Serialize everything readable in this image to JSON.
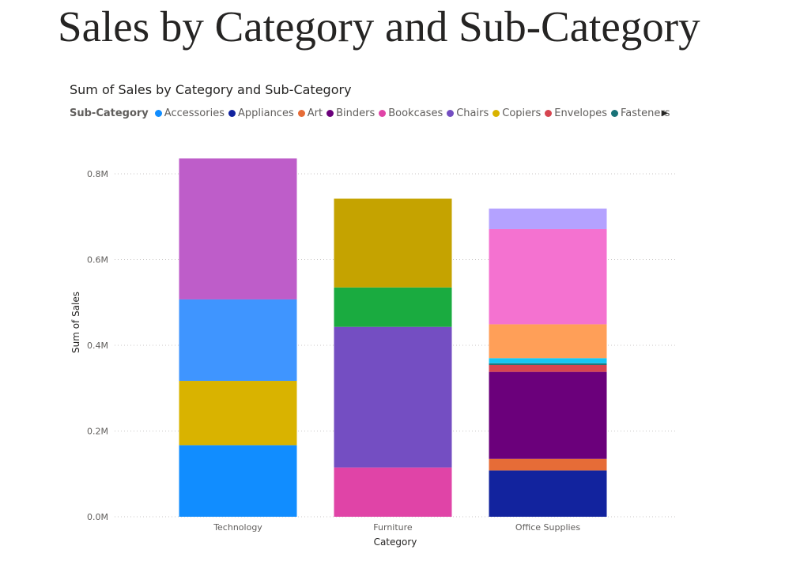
{
  "page": {
    "title": "Sales by Category and Sub-Category"
  },
  "chart_data": {
    "type": "bar",
    "stacked": true,
    "title": "Sum of Sales by Category and Sub-Category",
    "xlabel": "Category",
    "ylabel": "Sum of Sales",
    "ylim": [
      0,
      800000
    ],
    "yticks": [
      {
        "value": 0,
        "label": "0.0M"
      },
      {
        "value": 200000,
        "label": "0.2M"
      },
      {
        "value": 400000,
        "label": "0.4M"
      },
      {
        "value": 600000,
        "label": "0.6M"
      },
      {
        "value": 800000,
        "label": "0.8M"
      }
    ],
    "grid": true,
    "legend_placement": "top",
    "legend_title": "Sub-Category",
    "legend": [
      {
        "name": "Accessories",
        "color": "#118DFF"
      },
      {
        "name": "Appliances",
        "color": "#12239E"
      },
      {
        "name": "Art",
        "color": "#E66C37"
      },
      {
        "name": "Binders",
        "color": "#6B007B"
      },
      {
        "name": "Bookcases",
        "color": "#E044A7"
      },
      {
        "name": "Chairs",
        "color": "#744EC2"
      },
      {
        "name": "Copiers",
        "color": "#D9B300"
      },
      {
        "name": "Envelopes",
        "color": "#D64550"
      },
      {
        "name": "Fasteners",
        "color": "#197278"
      }
    ],
    "categories": [
      "Technology",
      "Furniture",
      "Office Supplies"
    ],
    "stacks": [
      {
        "category": "Technology",
        "segments": [
          {
            "value": 167000,
            "color": "#118DFF"
          },
          {
            "value": 150000,
            "color": "#D9B300"
          },
          {
            "value": 190000,
            "color": "#3F95FF"
          },
          {
            "value": 329000,
            "color": "#BE5DC9"
          }
        ]
      },
      {
        "category": "Furniture",
        "segments": [
          {
            "value": 115000,
            "color": "#E044A7"
          },
          {
            "value": 328000,
            "color": "#744EC2"
          },
          {
            "value": 92000,
            "color": "#1AAB40"
          },
          {
            "value": 207000,
            "color": "#C5A300"
          }
        ]
      },
      {
        "category": "Office Supplies",
        "segments": [
          {
            "value": 108000,
            "color": "#12239E"
          },
          {
            "value": 27000,
            "color": "#E66C37"
          },
          {
            "value": 203000,
            "color": "#6B007B"
          },
          {
            "value": 16000,
            "color": "#D64550"
          },
          {
            "value": 4000,
            "color": "#197278"
          },
          {
            "value": 12000,
            "color": "#15C6F4"
          },
          {
            "value": 79000,
            "color": "#FF9F58"
          },
          {
            "value": 222000,
            "color": "#F472D0"
          },
          {
            "value": 48000,
            "color": "#B4A2FF"
          }
        ]
      }
    ]
  }
}
